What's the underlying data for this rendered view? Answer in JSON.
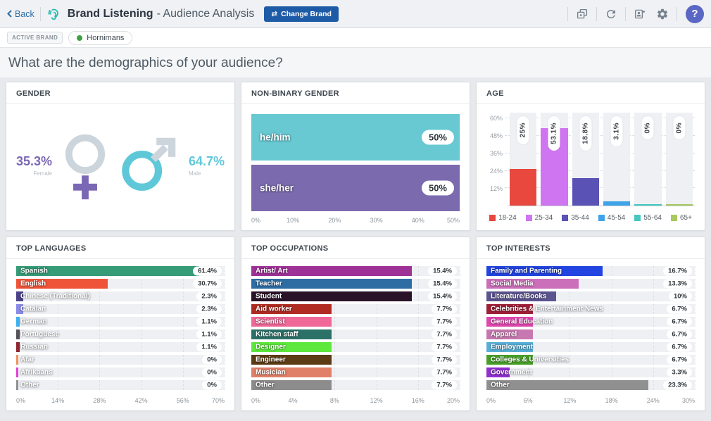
{
  "header": {
    "back_label": "Back",
    "product_name": "Brand Listening",
    "page_subtitle": "- Audience Analysis",
    "change_brand_label": "Change Brand",
    "swap_glyph": "⇄",
    "help_label": "?",
    "toolbar_icons": [
      "duplicate-icon",
      "refresh-icon",
      "export-user-icon",
      "settings-icon",
      "help-icon"
    ],
    "colors": {
      "change_brand_bg": "#1e5ba6",
      "help_circle_bg": "#5b67c4",
      "back_link": "#2e6da4",
      "logo_teal": "#2bbbb0"
    }
  },
  "active_brand": {
    "label": "ACTIVE BRAND",
    "brand": "Hornimans",
    "status_dot_color": "#3fa13f"
  },
  "question": "What are the demographics of your audience?",
  "chart_data": [
    {
      "id": "gender",
      "type": "icon-stat",
      "title": "GENDER",
      "female": {
        "label": "Female",
        "value": 35.3,
        "display": "35.3%",
        "color": "#7b68b5"
      },
      "male": {
        "label": "Male",
        "value": 64.7,
        "display": "64.7%",
        "color": "#5fc8d8"
      },
      "symbol_gray": "#cdd5dc"
    },
    {
      "id": "non_binary_gender",
      "type": "bar-horizontal",
      "title": "NON-BINARY GENDER",
      "categories": [
        "he/him",
        "she/her"
      ],
      "values": [
        50,
        50
      ],
      "value_labels": [
        "50%",
        "50%"
      ],
      "colors": [
        "#68c9d3",
        "#7b6bae"
      ],
      "xlim": [
        0,
        50
      ],
      "xticks": [
        "0%",
        "10%",
        "20%",
        "30%",
        "40%",
        "50%"
      ]
    },
    {
      "id": "age",
      "type": "bar-vertical",
      "title": "AGE",
      "categories": [
        "18-24",
        "25-34",
        "35-44",
        "45-54",
        "55-64",
        "65+"
      ],
      "values": [
        25,
        53.1,
        18.8,
        3.1,
        0,
        0
      ],
      "value_labels": [
        "25%",
        "53.1%",
        "18.8%",
        "3.1%",
        "0%",
        "0%"
      ],
      "colors": [
        "#e8483e",
        "#cf75f2",
        "#5a52b5",
        "#3fa3ea",
        "#45c8c0",
        "#a8c95e"
      ],
      "ylim": [
        0,
        64
      ],
      "yticks": [
        {
          "label": "60%",
          "value": 60
        },
        {
          "label": "48%",
          "value": 48
        },
        {
          "label": "36%",
          "value": 36
        },
        {
          "label": "24%",
          "value": 24
        },
        {
          "label": "12%",
          "value": 12
        }
      ],
      "legend": [
        "18-24",
        "25-34",
        "35-44",
        "45-54",
        "55-64",
        "65+"
      ],
      "legend_position": "bottom",
      "grid": true
    },
    {
      "id": "top_languages",
      "type": "bar-horizontal",
      "title": "TOP LANGUAGES",
      "categories": [
        "Spanish",
        "English",
        "Chinese (Traditional)",
        "Catalan",
        "German",
        "Portuguese",
        "Russian",
        "Afar",
        "Afrikaans",
        "Other"
      ],
      "values": [
        61.4,
        30.7,
        2.3,
        2.3,
        1.1,
        1.1,
        1.1,
        0,
        0,
        0
      ],
      "value_labels": [
        "61.4%",
        "30.7%",
        "2.3%",
        "2.3%",
        "1.1%",
        "1.1%",
        "1.1%",
        "0%",
        "0%",
        "0%"
      ],
      "colors": [
        "#369b77",
        "#ef5438",
        "#4c4389",
        "#8a8ae8",
        "#3cb0f0",
        "#56525a",
        "#8e2730",
        "#f09060",
        "#e040d0",
        "#909090"
      ],
      "xlim": [
        0,
        70
      ],
      "xticks": [
        "0%",
        "14%",
        "28%",
        "42%",
        "56%",
        "70%"
      ]
    },
    {
      "id": "top_occupations",
      "type": "bar-horizontal",
      "title": "TOP OCCUPATIONS",
      "categories": [
        "Artist/ Art",
        "Teacher",
        "Student",
        "Aid worker",
        "Scientist",
        "Kitchen staff",
        "Designer",
        "Engineer",
        "Musician",
        "Other"
      ],
      "values": [
        15.4,
        15.4,
        15.4,
        7.7,
        7.7,
        7.7,
        7.7,
        7.7,
        7.7,
        7.7
      ],
      "value_labels": [
        "15.4%",
        "15.4%",
        "15.4%",
        "7.7%",
        "7.7%",
        "7.7%",
        "7.7%",
        "7.7%",
        "7.7%",
        "7.7%"
      ],
      "colors": [
        "#9e3296",
        "#2e6da4",
        "#2a1228",
        "#b02c22",
        "#f06898",
        "#2c7168",
        "#5ee83e",
        "#5c3c14",
        "#e08068",
        "#8c8c8c"
      ],
      "xlim": [
        0,
        20
      ],
      "xticks": [
        "0%",
        "4%",
        "8%",
        "12%",
        "16%",
        "20%"
      ]
    },
    {
      "id": "top_interests",
      "type": "bar-horizontal",
      "title": "TOP INTERESTS",
      "categories": [
        "Family and Parenting",
        "Social Media",
        "Literature/Books",
        "Celebrities & Entertainment News",
        "General Education",
        "Apparel",
        "Employment",
        "Colleges & Universities",
        "Government",
        "Other"
      ],
      "values": [
        16.7,
        13.3,
        10,
        6.7,
        6.7,
        6.7,
        6.7,
        6.7,
        3.3,
        23.3
      ],
      "value_labels": [
        "16.7%",
        "13.3%",
        "10%",
        "6.7%",
        "6.7%",
        "6.7%",
        "6.7%",
        "6.7%",
        "3.3%",
        "23.3%"
      ],
      "colors": [
        "#2244e0",
        "#cc6fba",
        "#5c5490",
        "#a02038",
        "#e048b0",
        "#c878b0",
        "#58b0d8",
        "#48a028",
        "#9030d0",
        "#909090"
      ],
      "xlim": [
        0,
        30
      ],
      "xticks": [
        "0%",
        "6%",
        "12%",
        "18%",
        "24%",
        "30%"
      ]
    }
  ]
}
